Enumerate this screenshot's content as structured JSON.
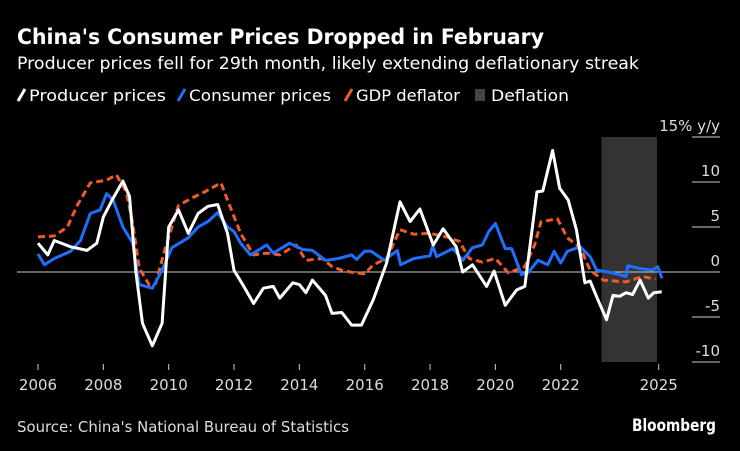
{
  "title": "China's Consumer Prices Dropped in February",
  "subtitle": "Producer prices fell for 29th month, likely extending deflationary streak",
  "source": "Source: China's National Bureau of Statistics",
  "brand": "Bloomberg",
  "chart_data": {
    "type": "line",
    "ylabel": "15% y/y",
    "ylim": [
      -12,
      15
    ],
    "xlim": [
      2005.5,
      2025.5
    ],
    "yticks": [
      15,
      10,
      5,
      0,
      -5,
      -10
    ],
    "ytick_labels": [
      "15% y/y",
      "10",
      "5",
      "0",
      "-5",
      "-10"
    ],
    "xticks": [
      2006,
      2008,
      2010,
      2012,
      2014,
      2016,
      2018,
      2020,
      2022,
      2025
    ],
    "xtick_labels": [
      "2006",
      "2008",
      "2010",
      "2012",
      "2014",
      "2016",
      "2018",
      "2020",
      "2022",
      "2025"
    ],
    "legend_placement": "top-left",
    "legend": [
      {
        "label": "Producer prices",
        "color": "#ffffff",
        "style": "solid"
      },
      {
        "label": "Consumer prices",
        "color": "#1f6fff",
        "style": "solid"
      },
      {
        "label": "GDP deflator",
        "color": "#f05a28",
        "style": "dashed"
      },
      {
        "label": "Deflation",
        "color": "#333333",
        "style": "area"
      }
    ],
    "shaded_regions": [
      {
        "label": "Deflation",
        "x": [
          2023.25,
          2024.95
        ],
        "color": "#333333"
      }
    ],
    "series": [
      {
        "name": "Producer prices",
        "color": "#ffffff",
        "dashed": false,
        "x": [
          2006.0,
          2006.3,
          2006.5,
          2007.0,
          2007.5,
          2007.8,
          2008.0,
          2008.3,
          2008.6,
          2008.8,
          2009.0,
          2009.2,
          2009.5,
          2009.8,
          2010.0,
          2010.3,
          2010.6,
          2010.9,
          2011.2,
          2011.5,
          2011.8,
          2012.0,
          2012.3,
          2012.6,
          2012.9,
          2013.2,
          2013.4,
          2013.8,
          2014.0,
          2014.2,
          2014.4,
          2014.8,
          2015.0,
          2015.3,
          2015.6,
          2015.9,
          2016.26,
          2016.67,
          2017.08,
          2017.39,
          2017.69,
          2018.1,
          2018.4,
          2018.8,
          2019.0,
          2019.3,
          2019.73,
          2019.96,
          2020.3,
          2020.65,
          2020.9,
          2021.27,
          2021.45,
          2021.75,
          2021.97,
          2022.23,
          2022.48,
          2022.74,
          2022.9,
          2023.14,
          2023.4,
          2023.6,
          2023.8,
          2024.0,
          2024.2,
          2024.43,
          2024.68,
          2024.85,
          2025.09
        ],
        "y": [
          3.2,
          1.9,
          3.5,
          2.8,
          2.4,
          3.2,
          6.1,
          8.2,
          10.1,
          8.4,
          -0.1,
          -5.7,
          -8.2,
          -5.7,
          5.0,
          6.9,
          4.3,
          6.5,
          7.3,
          7.5,
          4.3,
          0.2,
          -1.6,
          -3.5,
          -1.8,
          -1.6,
          -2.9,
          -1.2,
          -1.4,
          -2.3,
          -0.9,
          -2.6,
          -4.6,
          -4.5,
          -5.9,
          -5.9,
          -3.1,
          1.0,
          7.8,
          5.6,
          7.0,
          3.0,
          4.8,
          2.8,
          0.0,
          0.8,
          -1.6,
          0.1,
          -3.7,
          -2.0,
          -1.6,
          8.9,
          9.0,
          13.5,
          9.3,
          8.0,
          4.7,
          -1.2,
          -1.0,
          -3.1,
          -5.3,
          -2.6,
          -2.7,
          -2.3,
          -2.5,
          -0.9,
          -2.9,
          -2.3,
          -2.2
        ]
      },
      {
        "name": "Consumer prices",
        "color": "#1f6fff",
        "dashed": false,
        "x": [
          2006.0,
          2006.2,
          2006.5,
          2007.0,
          2007.3,
          2007.6,
          2007.9,
          2008.1,
          2008.3,
          2008.6,
          2008.9,
          2009.1,
          2009.5,
          2009.8,
          2010.1,
          2010.6,
          2010.9,
          2011.2,
          2011.5,
          2011.8,
          2012.0,
          2012.2,
          2012.5,
          2013.0,
          2013.2,
          2013.7,
          2014.1,
          2014.4,
          2014.8,
          2015.2,
          2015.6,
          2015.75,
          2016.0,
          2016.2,
          2016.6,
          2017.0,
          2017.1,
          2017.5,
          2018.0,
          2018.08,
          2018.2,
          2018.7,
          2019.0,
          2019.3,
          2019.6,
          2019.8,
          2020.0,
          2020.3,
          2020.5,
          2020.8,
          2021.0,
          2021.3,
          2021.6,
          2021.8,
          2022.0,
          2022.2,
          2022.6,
          2022.9,
          2023.1,
          2023.3,
          2023.6,
          2024.0,
          2024.05,
          2024.4,
          2024.8,
          2024.97,
          2025.1
        ],
        "y": [
          2.0,
          0.8,
          1.5,
          2.3,
          3.5,
          6.5,
          6.9,
          8.7,
          8.0,
          5.0,
          3.2,
          -1.4,
          -1.8,
          0.2,
          2.7,
          3.8,
          5.0,
          5.6,
          6.6,
          5.0,
          4.5,
          3.2,
          1.9,
          3.0,
          2.1,
          3.2,
          2.5,
          2.4,
          1.3,
          1.5,
          1.9,
          1.4,
          2.3,
          2.3,
          1.3,
          2.4,
          0.8,
          1.5,
          1.8,
          2.9,
          1.7,
          2.6,
          1.3,
          2.7,
          3.0,
          4.5,
          5.4,
          2.6,
          2.6,
          -0.3,
          -0.1,
          1.3,
          0.8,
          2.3,
          1.0,
          2.3,
          2.8,
          1.7,
          0.2,
          0.1,
          -0.1,
          -0.5,
          0.7,
          0.4,
          0.2,
          0.6,
          -0.7
        ]
      },
      {
        "name": "GDP deflator",
        "color": "#f05a28",
        "dashed": true,
        "x": [
          2006.0,
          2006.5,
          2006.9,
          2007.2,
          2007.6,
          2008.1,
          2008.4,
          2008.7,
          2008.9,
          2009.1,
          2009.4,
          2009.6,
          2009.9,
          2010.3,
          2010.7,
          2011.1,
          2011.6,
          2011.8,
          2012.2,
          2012.6,
          2013.0,
          2013.4,
          2013.9,
          2014.2,
          2014.7,
          2015.0,
          2015.3,
          2015.7,
          2016.0,
          2016.26,
          2016.67,
          2017.08,
          2017.5,
          2018.0,
          2018.5,
          2018.9,
          2019.2,
          2019.6,
          2020.0,
          2020.4,
          2020.9,
          2021.2,
          2021.4,
          2021.9,
          2022.2,
          2022.6,
          2022.9,
          2023.3,
          2024.0,
          2024.5,
          2024.9
        ],
        "y": [
          3.9,
          4.0,
          5.0,
          7.4,
          9.9,
          10.2,
          10.8,
          8.9,
          5.4,
          0.4,
          -1.4,
          -1.3,
          2.7,
          7.4,
          8.2,
          8.9,
          9.9,
          8.0,
          4.3,
          1.9,
          2.1,
          1.9,
          3.0,
          1.3,
          1.5,
          0.6,
          0.2,
          -0.1,
          -0.2,
          0.8,
          1.5,
          4.7,
          4.2,
          4.3,
          3.9,
          3.4,
          1.5,
          1.1,
          1.5,
          -0.1,
          0.6,
          3.0,
          5.6,
          5.9,
          3.8,
          2.7,
          0.2,
          -0.9,
          -1.1,
          -0.5,
          -0.8
        ]
      }
    ]
  }
}
